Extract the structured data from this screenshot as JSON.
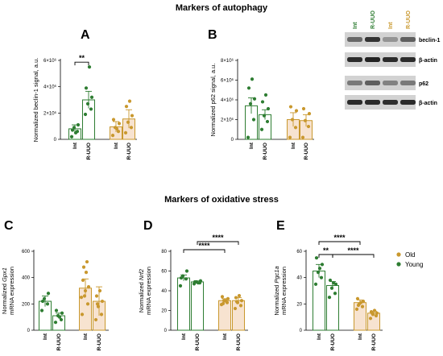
{
  "sections": {
    "autophagy": "Markers of autophagy",
    "oxidative": "Markers of oxidative stress"
  },
  "colors": {
    "young": "#2e7d32",
    "old": "#c9982e",
    "young_fill": "#ffffff",
    "old_fill": "#f7e3d0"
  },
  "legend": [
    {
      "label": "Old",
      "color": "#c9982e"
    },
    {
      "label": "Young",
      "color": "#2e7d32"
    }
  ],
  "western_blot": {
    "lanes": [
      {
        "label": "Int",
        "color": "#2e7d32"
      },
      {
        "label": "R-UUO",
        "color": "#2e7d32"
      },
      {
        "label": "Int",
        "color": "#c9982e"
      },
      {
        "label": "R-UUO",
        "color": "#c9982e"
      }
    ],
    "bands": [
      {
        "label": "beclin-1",
        "intensity": [
          0.55,
          0.85,
          0.3,
          0.6
        ]
      },
      {
        "label": "β-actin",
        "intensity": [
          0.9,
          0.95,
          0.9,
          0.9
        ]
      },
      {
        "label": "p62",
        "intensity": [
          0.45,
          0.6,
          0.4,
          0.45
        ]
      },
      {
        "label": "β-actin",
        "intensity": [
          0.9,
          0.9,
          0.88,
          0.9
        ]
      }
    ]
  },
  "chart_data": [
    {
      "type": "bar",
      "panel": "A",
      "ylabel": "Normalized beclin-1 signal, a.u.",
      "ticks": [
        "0",
        "2×10⁶",
        "4×10⁶",
        "6×10⁶"
      ],
      "ylim": [
        0,
        6000000
      ],
      "categories": [
        "Int",
        "R-UUO",
        "Int",
        "R-UUO"
      ],
      "groups": [
        "young",
        "young",
        "old",
        "old"
      ],
      "values": [
        800000,
        3000000,
        950000,
        1550000
      ],
      "errors": [
        300000,
        650000,
        400000,
        700000
      ],
      "points": [
        [
          200000,
          600000,
          900000,
          1100000,
          700000,
          500000
        ],
        [
          1900000,
          2300000,
          2700000,
          3200000,
          3900000,
          5500000
        ],
        [
          300000,
          600000,
          900000,
          1200000,
          1500000,
          800000
        ],
        [
          500000,
          900000,
          1300000,
          1800000,
          2500000,
          2900000
        ]
      ],
      "significance": [
        {
          "from": 0,
          "to": 1,
          "label": "**"
        }
      ]
    },
    {
      "type": "bar",
      "panel": "B",
      "ylabel": "Normalized p62 signal, a.u.",
      "ticks": [
        "0",
        "2×10⁶",
        "4×10⁶",
        "6×10⁶",
        "8×10⁶"
      ],
      "ylim": [
        0,
        8000000
      ],
      "categories": [
        "Int",
        "R-UUO",
        "Int",
        "R-UUO"
      ],
      "groups": [
        "young",
        "young",
        "old",
        "old"
      ],
      "values": [
        3400000,
        2500000,
        2000000,
        1900000
      ],
      "errors": [
        800000,
        500000,
        700000,
        600000
      ],
      "points": [
        [
          200000,
          2000000,
          3600000,
          4100000,
          5200000,
          6100000
        ],
        [
          1000000,
          1800000,
          2400000,
          3100000,
          3800000,
          4500000
        ],
        [
          200000,
          1200000,
          2000000,
          2900000,
          3300000
        ],
        [
          200000,
          1300000,
          1900000,
          2600000,
          3100000
        ]
      ],
      "significance": []
    },
    {
      "type": "bar",
      "panel": "C",
      "ylabel_pre": "Normalized ",
      "ylabel_gene": "Gpx1",
      "ylabel2": "mRNA expression",
      "ticks": [
        "0",
        "200",
        "400",
        "600"
      ],
      "ylim": [
        0,
        600
      ],
      "categories": [
        "Int",
        "R-UUO",
        "Int",
        "R-UUO"
      ],
      "groups": [
        "young",
        "young",
        "old",
        "old"
      ],
      "values": [
        220,
        110,
        320,
        220
      ],
      "errors": [
        40,
        20,
        70,
        110
      ],
      "points": [
        [
          150,
          200,
          240,
          280,
          220
        ],
        [
          60,
          80,
          110,
          130,
          150,
          100
        ],
        [
          120,
          200,
          260,
          330,
          380,
          440,
          480,
          520,
          300,
          250
        ],
        [
          80,
          120,
          180,
          220,
          260,
          300,
          200
        ]
      ],
      "significance": []
    },
    {
      "type": "bar",
      "panel": "D",
      "ylabel_pre": "Normalized ",
      "ylabel_gene": "Nrf2",
      "ylabel2": "mRNA expression",
      "ticks": [
        "0",
        "20",
        "40",
        "60",
        "80"
      ],
      "ylim": [
        0,
        80
      ],
      "categories": [
        "Int",
        "R-UUO",
        "Int",
        "R-UUO"
      ],
      "groups": [
        "young",
        "young",
        "old",
        "old"
      ],
      "values": [
        53,
        49,
        30,
        30
      ],
      "errors": [
        3,
        1,
        2,
        3
      ],
      "points": [
        [
          45,
          52,
          55,
          60,
          53
        ],
        [
          47,
          48,
          49,
          50,
          49,
          48
        ],
        [
          26,
          28,
          30,
          32,
          34,
          30,
          27
        ],
        [
          22,
          25,
          28,
          30,
          33,
          35,
          29
        ]
      ],
      "significance": [
        {
          "from": 0,
          "to": 2,
          "label": "****"
        },
        {
          "from": 1,
          "to": 3,
          "label": "****"
        }
      ]
    },
    {
      "type": "bar",
      "panel": "E",
      "ylabel_pre": "Normalized ",
      "ylabel_gene": "Pgc1a",
      "ylabel2": "mRNA expression",
      "ticks": [
        "0",
        "20",
        "40",
        "60"
      ],
      "ylim": [
        0,
        60
      ],
      "categories": [
        "Int",
        "R-UUO",
        "Int",
        "R-UUO"
      ],
      "groups": [
        "young",
        "young",
        "old",
        "old"
      ],
      "values": [
        45,
        34,
        21,
        13
      ],
      "errors": [
        5,
        3,
        2,
        1.5
      ],
      "points": [
        [
          35,
          40,
          44,
          50,
          55,
          47
        ],
        [
          25,
          28,
          32,
          35,
          38,
          36
        ],
        [
          16,
          18,
          20,
          22,
          24,
          21,
          19
        ],
        [
          9,
          11,
          12,
          13,
          14,
          15,
          13
        ]
      ],
      "significance": [
        {
          "from": 0,
          "to": 1,
          "label": "**"
        },
        {
          "from": 0,
          "to": 2,
          "label": "****"
        },
        {
          "from": 1,
          "to": 3,
          "label": "****"
        }
      ]
    }
  ]
}
